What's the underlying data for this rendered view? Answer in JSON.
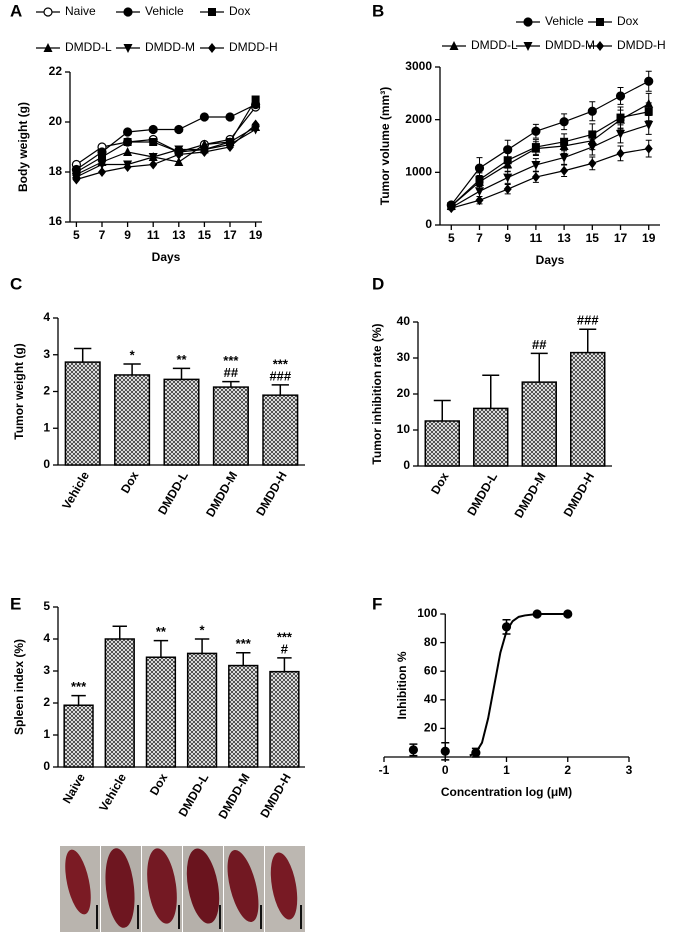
{
  "chart_data": [
    {
      "panel": "A",
      "type": "line",
      "ylabel": "Body weight (g)",
      "xlabel": "Days",
      "x": [
        5,
        7,
        9,
        11,
        13,
        15,
        17,
        19
      ],
      "xlim": [
        4.5,
        19.5
      ],
      "xticks": [
        5,
        7,
        9,
        11,
        13,
        15,
        17,
        19
      ],
      "ylim": [
        16,
        22
      ],
      "yticks": [
        16,
        18,
        20,
        22
      ],
      "legend": "top",
      "series": [
        {
          "name": "Naive",
          "color": "#000000",
          "marker": "open-circle",
          "values": [
            18.3,
            19.0,
            19.2,
            19.3,
            18.8,
            19.1,
            19.3,
            20.6
          ]
        },
        {
          "name": "Vehicle",
          "color": "#000000",
          "marker": "circle",
          "values": [
            18.1,
            18.8,
            19.6,
            19.7,
            19.7,
            20.2,
            20.2,
            20.7
          ]
        },
        {
          "name": "Dox",
          "color": "#000000",
          "marker": "square",
          "values": [
            18.0,
            18.6,
            19.2,
            19.2,
            18.8,
            18.9,
            19.2,
            20.9
          ]
        },
        {
          "name": "DMDD-L",
          "color": "#000000",
          "marker": "triangle",
          "values": [
            17.9,
            18.4,
            18.8,
            18.6,
            18.4,
            19.1,
            19.2,
            19.8
          ]
        },
        {
          "name": "DMDD-M",
          "color": "#000000",
          "marker": "triangle-down",
          "values": [
            17.8,
            18.3,
            18.3,
            18.6,
            18.9,
            18.9,
            19.1,
            19.7
          ]
        },
        {
          "name": "DMDD-H",
          "color": "#000000",
          "marker": "diamond",
          "values": [
            17.7,
            18.0,
            18.2,
            18.3,
            18.7,
            18.8,
            19.0,
            19.9
          ]
        }
      ]
    },
    {
      "panel": "B",
      "type": "line",
      "ylabel": "Tumor volume (mm³)",
      "xlabel": "Days",
      "x": [
        5,
        7,
        9,
        11,
        13,
        15,
        17,
        19
      ],
      "xlim": [
        4.2,
        19.8
      ],
      "xticks": [
        5,
        7,
        9,
        11,
        13,
        15,
        17,
        19
      ],
      "ylim": [
        0,
        3000
      ],
      "yticks": [
        0,
        1000,
        2000,
        3000
      ],
      "legend": "top",
      "series": [
        {
          "name": "Vehicle",
          "color": "#000000",
          "marker": "circle",
          "values": [
            380,
            1080,
            1430,
            1780,
            1960,
            2160,
            2450,
            2730
          ],
          "errors": [
            40,
            200,
            180,
            130,
            150,
            180,
            160,
            190
          ]
        },
        {
          "name": "Dox",
          "color": "#000000",
          "marker": "square",
          "values": [
            360,
            860,
            1230,
            1480,
            1580,
            1720,
            2040,
            2150
          ],
          "errors": [
            30,
            130,
            150,
            140,
            150,
            200,
            200,
            170
          ]
        },
        {
          "name": "DMDD-L",
          "color": "#000000",
          "marker": "triangle",
          "values": [
            360,
            820,
            1150,
            1450,
            1500,
            1600,
            2000,
            2300
          ],
          "errors": [
            30,
            120,
            130,
            130,
            140,
            170,
            180,
            200
          ]
        },
        {
          "name": "DMDD-M",
          "color": "#000000",
          "marker": "triangle-down",
          "values": [
            330,
            640,
            900,
            1140,
            1280,
            1480,
            1730,
            1900
          ],
          "errors": [
            30,
            100,
            110,
            120,
            130,
            150,
            170,
            180
          ]
        },
        {
          "name": "DMDD-H",
          "color": "#000000",
          "marker": "diamond",
          "values": [
            320,
            470,
            680,
            910,
            1030,
            1170,
            1360,
            1450
          ],
          "errors": [
            30,
            70,
            90,
            100,
            110,
            120,
            140,
            160
          ]
        }
      ]
    },
    {
      "panel": "C",
      "type": "bar",
      "ylabel": "Tumor weight (g)",
      "categories": [
        "Vehicle",
        "Dox",
        "DMDD-L",
        "DMDD-M",
        "DMDD-H"
      ],
      "values": [
        2.8,
        2.45,
        2.33,
        2.12,
        1.9
      ],
      "errors": [
        0.37,
        0.3,
        0.3,
        0.15,
        0.28
      ],
      "annotations": [
        null,
        [
          "*"
        ],
        [
          "**"
        ],
        [
          "***",
          "##"
        ],
        [
          "***",
          "###"
        ]
      ],
      "ylim": [
        0,
        4
      ],
      "yticks": [
        0,
        1,
        2,
        3,
        4
      ],
      "color": "#000000"
    },
    {
      "panel": "D",
      "type": "bar",
      "ylabel": "Tumor inhibition rate (%)",
      "categories": [
        "Dox",
        "DMDD-L",
        "DMDD-M",
        "DMDD-H"
      ],
      "values": [
        12.5,
        16,
        23.3,
        31.5
      ],
      "errors": [
        5.7,
        9.2,
        8,
        6.5
      ],
      "annotations": [
        null,
        null,
        [
          "##"
        ],
        [
          "###"
        ]
      ],
      "ylim": [
        0,
        40
      ],
      "yticks": [
        0,
        10,
        20,
        30,
        40
      ],
      "color": "#000000"
    },
    {
      "panel": "E",
      "type": "bar",
      "ylabel": "Spleen index (%)",
      "categories": [
        "Naive",
        "Vehicle",
        "Dox",
        "DMDD-L",
        "DMDD-M",
        "DMDD-H"
      ],
      "values": [
        1.93,
        4.0,
        3.43,
        3.55,
        3.17,
        2.98
      ],
      "errors": [
        0.3,
        0.4,
        0.52,
        0.45,
        0.4,
        0.43
      ],
      "annotations": [
        [
          "***"
        ],
        null,
        [
          "**"
        ],
        [
          "*"
        ],
        [
          "***"
        ],
        [
          "***",
          "#"
        ]
      ],
      "ylim": [
        0,
        5
      ],
      "yticks": [
        0,
        1,
        2,
        3,
        4,
        5
      ],
      "color": "#000000"
    },
    {
      "panel": "F",
      "type": "dose-response",
      "ylabel": "Inhibition %",
      "xlabel": "Concentration log (μM)",
      "xlim": [
        -1,
        3
      ],
      "xticks": [
        -1,
        0,
        1,
        2,
        3
      ],
      "ylim": [
        0,
        100
      ],
      "yticks": [
        20,
        40,
        60,
        80,
        100
      ],
      "points": {
        "x": [
          -0.52,
          0,
          0.5,
          1,
          1.5,
          2
        ],
        "values": [
          5,
          4,
          3,
          91,
          100,
          100
        ],
        "errors": [
          4,
          6,
          3,
          5,
          0,
          0
        ]
      },
      "curve": {
        "x": [
          0.4,
          0.5,
          0.6,
          0.7,
          0.8,
          0.9,
          1.0,
          1.1,
          1.2,
          1.3,
          1.5,
          2.0
        ],
        "values": [
          1,
          3,
          10,
          27,
          50,
          73,
          88,
          95,
          98,
          99,
          100,
          100
        ]
      },
      "color": "#000000"
    }
  ]
}
